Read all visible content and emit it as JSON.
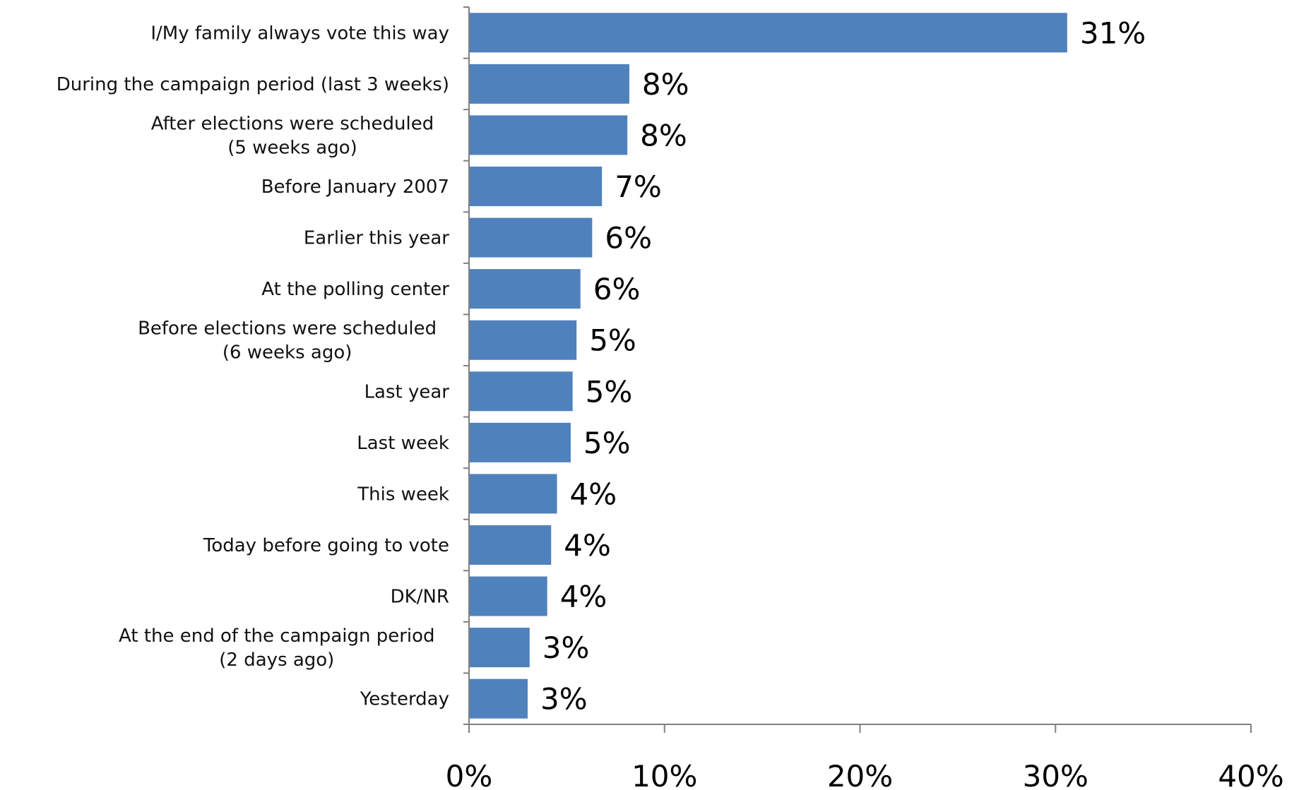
{
  "chart_data": {
    "type": "bar",
    "orientation": "horizontal",
    "title": "",
    "xlabel": "",
    "ylabel": "",
    "categories": [
      "I/My family always vote this way",
      "During the campaign period (last 3 weeks)",
      "After elections were scheduled\n(5 weeks ago)",
      "Before January 2007",
      "Earlier this year",
      "At the polling center",
      "Before elections were scheduled\n(6 weeks ago)",
      "Last year",
      "Last week",
      "This week",
      "Today before going to vote",
      "DK/NR",
      "At the end of the campaign period\n(2 days ago)",
      "Yesterday"
    ],
    "values": [
      30.6,
      8.2,
      8.1,
      6.8,
      6.3,
      5.7,
      5.5,
      5.3,
      5.2,
      4.5,
      4.2,
      4.0,
      3.1,
      3.0
    ],
    "data_labels": [
      "31%",
      "8%",
      "8%",
      "7%",
      "6%",
      "6%",
      "5%",
      "5%",
      "5%",
      "4%",
      "4%",
      "4%",
      "3%",
      "3%"
    ],
    "xlim": [
      0,
      40
    ],
    "x_ticks": [
      0,
      10,
      20,
      30,
      40
    ],
    "x_tick_labels": [
      "0%",
      "10%",
      "20%",
      "30%",
      "40%"
    ],
    "bar_color": "#4f81bd",
    "axis_color": "#808080",
    "grid": false,
    "legend": "none"
  }
}
